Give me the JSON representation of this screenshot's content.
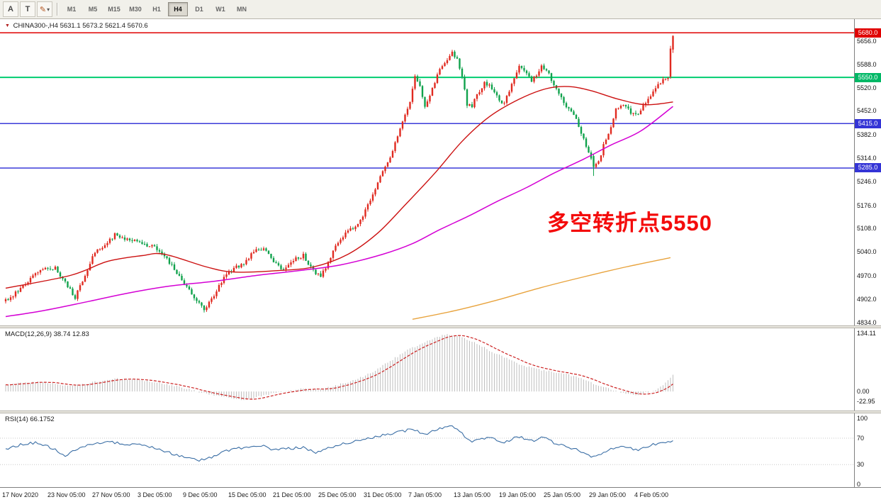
{
  "toolbar": {
    "tools": {
      "pointer_label": "A",
      "text_label": "T"
    },
    "icons": {
      "pencil": "✎",
      "dropdown_arrow": "▾"
    },
    "timeframes": [
      "M1",
      "M5",
      "M15",
      "M30",
      "H1",
      "H4",
      "D1",
      "W1",
      "MN"
    ],
    "active_timeframe": "H4"
  },
  "main_chart": {
    "marker_icon": "▼",
    "symbol_line": "CHINA300-,H4 5631.1 5673.2 5621.4 5670.6",
    "annotation": "多空转折点5550",
    "price_ticks": [
      "5656.0",
      "5588.0",
      "5520.0",
      "5452.0",
      "5382.0",
      "5314.0",
      "5246.0",
      "5176.0",
      "5108.0",
      "5040.0",
      "4970.0",
      "4902.0",
      "4834.0"
    ]
  },
  "macd_panel": {
    "label": "MACD(12,26,9) 38.74 12.83",
    "ticks": [
      "134.11",
      "0.00",
      "-22.95"
    ]
  },
  "rsi_panel": {
    "label": "RSI(14) 66.1752",
    "ticks": [
      "100",
      "70",
      "30",
      "0"
    ]
  },
  "time_axis": {
    "labels": [
      "17 Nov 2020",
      "23 Nov 05:00",
      "27 Nov 05:00",
      "3 Dec 05:00",
      "9 Dec 05:00",
      "15 Dec 05:00",
      "21 Dec 05:00",
      "25 Dec 05:00",
      "31 Dec 05:00",
      "7 Jan 05:00",
      "13 Jan 05:00",
      "19 Jan 05:00",
      "25 Jan 05:00",
      "29 Jan 05:00",
      "4 Feb 05:00"
    ]
  },
  "colors": {
    "candle_up": "#e02a20",
    "candle_down": "#10a24c",
    "ma_red": "#cc1111",
    "ma_magenta": "#d400d4",
    "ma_orange": "#e8a33d",
    "macd_hist": "#bfbfbf",
    "macd_signal": "#cc2222",
    "rsi_line": "#3a6ea5",
    "annotation_red": "#f40b0b"
  },
  "chart_data": {
    "type": "candlestick",
    "symbol": "CHINA300-",
    "timeframe": "H4",
    "current_ohlc": {
      "open": 5631.1,
      "high": 5673.2,
      "low": 5621.4,
      "close": 5670.6
    },
    "num_candles": 270,
    "ylim": [
      4825,
      5720
    ],
    "horizontal_lines": [
      {
        "price": 5680,
        "label": "5680.0",
        "color": "#e00000",
        "badge_color": "#e00000",
        "width": 1.5
      },
      {
        "price": 5550,
        "label": "5550.0",
        "color": "#00cd70",
        "badge_color": "#00b866",
        "width": 2
      },
      {
        "price": 5415,
        "label": "5415.0",
        "color": "#3b3bd9",
        "badge_color": "#3434d6",
        "width": 1.5
      },
      {
        "price": 5285,
        "label": "5285.0",
        "color": "#3b3bd9",
        "badge_color": "#3434d6",
        "width": 1.5
      }
    ],
    "close_anchors": [
      [
        0,
        4898
      ],
      [
        4,
        4920
      ],
      [
        8,
        4950
      ],
      [
        14,
        4985
      ],
      [
        20,
        4995
      ],
      [
        24,
        4950
      ],
      [
        28,
        4908
      ],
      [
        32,
        4975
      ],
      [
        36,
        5040
      ],
      [
        40,
        5060
      ],
      [
        44,
        5090
      ],
      [
        48,
        5080
      ],
      [
        52,
        5075
      ],
      [
        56,
        5060
      ],
      [
        60,
        5055
      ],
      [
        64,
        5030
      ],
      [
        68,
        4990
      ],
      [
        72,
        4945
      ],
      [
        76,
        4910
      ],
      [
        80,
        4870
      ],
      [
        84,
        4915
      ],
      [
        88,
        4965
      ],
      [
        92,
        4995
      ],
      [
        96,
        5005
      ],
      [
        100,
        5040
      ],
      [
        104,
        5050
      ],
      [
        108,
        5010
      ],
      [
        112,
        4990
      ],
      [
        116,
        5015
      ],
      [
        120,
        5030
      ],
      [
        124,
        4985
      ],
      [
        127,
        4968
      ],
      [
        130,
        5010
      ],
      [
        133,
        5060
      ],
      [
        136,
        5085
      ],
      [
        140,
        5110
      ],
      [
        143,
        5135
      ],
      [
        146,
        5175
      ],
      [
        149,
        5220
      ],
      [
        152,
        5275
      ],
      [
        155,
        5310
      ],
      [
        158,
        5380
      ],
      [
        161,
        5440
      ],
      [
        163,
        5480
      ],
      [
        165,
        5555
      ],
      [
        167,
        5520
      ],
      [
        169,
        5465
      ],
      [
        172,
        5520
      ],
      [
        175,
        5570
      ],
      [
        178,
        5600
      ],
      [
        180,
        5625
      ],
      [
        182,
        5600
      ],
      [
        184,
        5555
      ],
      [
        186,
        5470
      ],
      [
        188,
        5465
      ],
      [
        190,
        5500
      ],
      [
        193,
        5535
      ],
      [
        196,
        5520
      ],
      [
        199,
        5480
      ],
      [
        201,
        5475
      ],
      [
        204,
        5530
      ],
      [
        207,
        5585
      ],
      [
        209,
        5575
      ],
      [
        212,
        5540
      ],
      [
        214,
        5555
      ],
      [
        216,
        5580
      ],
      [
        218,
        5570
      ],
      [
        220,
        5545
      ],
      [
        223,
        5500
      ],
      [
        226,
        5468
      ],
      [
        229,
        5440
      ],
      [
        232,
        5390
      ],
      [
        235,
        5330
      ],
      [
        237,
        5292
      ],
      [
        239,
        5300
      ],
      [
        241,
        5350
      ],
      [
        244,
        5400
      ],
      [
        246,
        5455
      ],
      [
        249,
        5472
      ],
      [
        252,
        5445
      ],
      [
        255,
        5440
      ],
      [
        258,
        5475
      ],
      [
        261,
        5510
      ],
      [
        264,
        5535
      ],
      [
        266,
        5550
      ],
      [
        267,
        5552
      ]
    ],
    "forced_candles": {
      "237": [
        5320,
        5326,
        5262,
        5288
      ],
      "268": [
        5552,
        5642,
        5546,
        5634
      ],
      "269": [
        5631.1,
        5673.2,
        5621.4,
        5670.6
      ]
    },
    "ma_red": [
      [
        0,
        4934
      ],
      [
        26,
        4971
      ],
      [
        41,
        5012
      ],
      [
        55,
        5029
      ],
      [
        64,
        5033
      ],
      [
        81,
        4996
      ],
      [
        92,
        4981
      ],
      [
        109,
        4985
      ],
      [
        124,
        4996
      ],
      [
        138,
        5033
      ],
      [
        150,
        5095
      ],
      [
        161,
        5177
      ],
      [
        173,
        5270
      ],
      [
        184,
        5363
      ],
      [
        195,
        5435
      ],
      [
        207,
        5486
      ],
      [
        218,
        5517
      ],
      [
        227,
        5523
      ],
      [
        236,
        5511
      ],
      [
        247,
        5486
      ],
      [
        258,
        5470
      ],
      [
        269,
        5478
      ]
    ],
    "ma_magenta": [
      [
        0,
        4851
      ],
      [
        15,
        4868
      ],
      [
        32,
        4893
      ],
      [
        49,
        4919
      ],
      [
        66,
        4940
      ],
      [
        84,
        4954
      ],
      [
        101,
        4971
      ],
      [
        118,
        4985
      ],
      [
        135,
        5002
      ],
      [
        152,
        5033
      ],
      [
        164,
        5064
      ],
      [
        175,
        5105
      ],
      [
        187,
        5146
      ],
      [
        198,
        5187
      ],
      [
        210,
        5228
      ],
      [
        221,
        5270
      ],
      [
        233,
        5311
      ],
      [
        244,
        5352
      ],
      [
        256,
        5393
      ],
      [
        269,
        5465
      ]
    ],
    "ma_orange": [
      [
        164,
        4843
      ],
      [
        181,
        4868
      ],
      [
        198,
        4899
      ],
      [
        215,
        4934
      ],
      [
        233,
        4967
      ],
      [
        250,
        4996
      ],
      [
        268,
        5023
      ]
    ],
    "macd": {
      "ylim": [
        -44,
        146
      ],
      "current": 38.74,
      "signal_current": 12.83,
      "anchors": [
        [
          0,
          16
        ],
        [
          8,
          20
        ],
        [
          16,
          22
        ],
        [
          24,
          14
        ],
        [
          32,
          18
        ],
        [
          40,
          26
        ],
        [
          46,
          30
        ],
        [
          52,
          28
        ],
        [
          58,
          24
        ],
        [
          64,
          18
        ],
        [
          72,
          8
        ],
        [
          80,
          -4
        ],
        [
          86,
          -10
        ],
        [
          92,
          -16
        ],
        [
          96,
          -20
        ],
        [
          102,
          -12
        ],
        [
          108,
          -4
        ],
        [
          114,
          2
        ],
        [
          120,
          6
        ],
        [
          126,
          4
        ],
        [
          132,
          12
        ],
        [
          138,
          22
        ],
        [
          144,
          34
        ],
        [
          150,
          52
        ],
        [
          156,
          74
        ],
        [
          162,
          95
        ],
        [
          168,
          112
        ],
        [
          173,
          124
        ],
        [
          178,
          132
        ],
        [
          182,
          128
        ],
        [
          186,
          120
        ],
        [
          190,
          110
        ],
        [
          194,
          98
        ],
        [
          198,
          86
        ],
        [
          202,
          76
        ],
        [
          206,
          66
        ],
        [
          210,
          58
        ],
        [
          214,
          52
        ],
        [
          218,
          47
        ],
        [
          222,
          44
        ],
        [
          226,
          40
        ],
        [
          230,
          34
        ],
        [
          234,
          26
        ],
        [
          238,
          16
        ],
        [
          242,
          8
        ],
        [
          246,
          2
        ],
        [
          250,
          -6
        ],
        [
          254,
          -8
        ],
        [
          258,
          -3
        ],
        [
          262,
          4
        ],
        [
          265,
          14
        ],
        [
          267,
          26
        ],
        [
          269,
          38.74
        ]
      ]
    },
    "rsi": {
      "ylim": [
        -4,
        107.5
      ],
      "levels": [
        70,
        30
      ],
      "current": 66.1752,
      "anchors": [
        [
          0,
          54
        ],
        [
          6,
          60
        ],
        [
          12,
          63
        ],
        [
          18,
          56
        ],
        [
          24,
          44
        ],
        [
          30,
          56
        ],
        [
          36,
          62
        ],
        [
          42,
          65
        ],
        [
          48,
          60
        ],
        [
          54,
          62
        ],
        [
          60,
          55
        ],
        [
          66,
          48
        ],
        [
          72,
          42
        ],
        [
          78,
          36
        ],
        [
          82,
          40
        ],
        [
          88,
          50
        ],
        [
          94,
          55
        ],
        [
          100,
          58
        ],
        [
          104,
          60
        ],
        [
          108,
          52
        ],
        [
          114,
          54
        ],
        [
          120,
          56
        ],
        [
          125,
          47
        ],
        [
          130,
          55
        ],
        [
          136,
          62
        ],
        [
          142,
          66
        ],
        [
          148,
          71
        ],
        [
          154,
          76
        ],
        [
          160,
          80
        ],
        [
          164,
          84
        ],
        [
          166,
          80
        ],
        [
          169,
          76
        ],
        [
          172,
          80
        ],
        [
          175,
          84
        ],
        [
          178,
          87
        ],
        [
          180,
          88
        ],
        [
          183,
          80
        ],
        [
          186,
          70
        ],
        [
          188,
          65
        ],
        [
          191,
          68
        ],
        [
          194,
          71
        ],
        [
          197,
          68
        ],
        [
          200,
          64
        ],
        [
          203,
          66
        ],
        [
          206,
          72
        ],
        [
          209,
          70
        ],
        [
          212,
          66
        ],
        [
          215,
          69
        ],
        [
          217,
          71
        ],
        [
          220,
          65
        ],
        [
          223,
          60
        ],
        [
          226,
          57
        ],
        [
          229,
          54
        ],
        [
          232,
          50
        ],
        [
          235,
          44
        ],
        [
          237,
          41
        ],
        [
          240,
          46
        ],
        [
          243,
          52
        ],
        [
          246,
          57
        ],
        [
          249,
          59
        ],
        [
          252,
          54
        ],
        [
          255,
          53
        ],
        [
          258,
          57
        ],
        [
          261,
          60
        ],
        [
          264,
          62
        ],
        [
          266,
          64
        ],
        [
          269,
          66.18
        ]
      ]
    }
  }
}
